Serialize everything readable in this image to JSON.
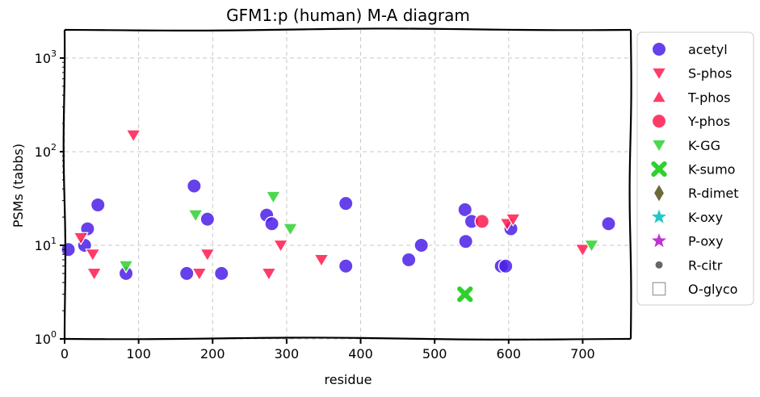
{
  "chart_data": {
    "type": "scatter",
    "title": "GFM1:p (human) M-A diagram",
    "xlabel": "residue",
    "ylabel": "PSMs (tabbs)",
    "xlim": [
      0,
      765
    ],
    "ylim": [
      1,
      2000
    ],
    "yscale": "log",
    "grid": true,
    "legend_position": "right-outside",
    "x_ticks": [
      "0",
      "100",
      "200",
      "300",
      "400",
      "500",
      "600",
      "700"
    ],
    "x_tick_values": [
      0,
      100,
      200,
      300,
      400,
      500,
      600,
      700
    ],
    "y_ticks": [
      {
        "value": 1,
        "base": "10",
        "exp": "0"
      },
      {
        "value": 10,
        "base": "10",
        "exp": "1"
      },
      {
        "value": 100,
        "base": "10",
        "exp": "2"
      },
      {
        "value": 1000,
        "base": "10",
        "exp": "3"
      }
    ],
    "series": [
      {
        "name": "acetyl",
        "marker": "circle",
        "color": "#4b1fe8",
        "points": [
          [
            5,
            9
          ],
          [
            27,
            10
          ],
          [
            31,
            15
          ],
          [
            45,
            27
          ],
          [
            83,
            5
          ],
          [
            165,
            5
          ],
          [
            175,
            43
          ],
          [
            193,
            19
          ],
          [
            212,
            5
          ],
          [
            273,
            21
          ],
          [
            280,
            17
          ],
          [
            380,
            28
          ],
          [
            380,
            6
          ],
          [
            465,
            7
          ],
          [
            482,
            10
          ],
          [
            541,
            24
          ],
          [
            542,
            11
          ],
          [
            550,
            18
          ],
          [
            590,
            6
          ],
          [
            596,
            6
          ],
          [
            603,
            15
          ],
          [
            735,
            17
          ]
        ]
      },
      {
        "name": "S-phos",
        "marker": "triangle-down",
        "color": "#ff1a4d",
        "points": [
          [
            22,
            12
          ],
          [
            38,
            8
          ],
          [
            40,
            5
          ],
          [
            93,
            150
          ],
          [
            182,
            5
          ],
          [
            193,
            8
          ],
          [
            276,
            5
          ],
          [
            292,
            10
          ],
          [
            347,
            7
          ],
          [
            598,
            17
          ],
          [
            606,
            19
          ],
          [
            700,
            9
          ]
        ]
      },
      {
        "name": "T-phos",
        "marker": "triangle-up",
        "color": "#ff1a4d",
        "points": []
      },
      {
        "name": "Y-phos",
        "marker": "circle",
        "color": "#ff1a4d",
        "points": [
          [
            564,
            18
          ]
        ]
      },
      {
        "name": "K-GG",
        "marker": "triangle-down",
        "color": "#2ed12e",
        "points": [
          [
            83,
            6
          ],
          [
            177,
            21
          ],
          [
            282,
            33
          ],
          [
            305,
            15
          ],
          [
            712,
            10
          ]
        ]
      },
      {
        "name": "K-sumo",
        "marker": "x",
        "color": "#2ed12e",
        "points": [
          [
            541,
            3
          ]
        ]
      },
      {
        "name": "R-dimet",
        "marker": "diamond",
        "color": "#6b6b3a",
        "points": []
      },
      {
        "name": "K-oxy",
        "marker": "star",
        "color": "#22c8c8",
        "points": []
      },
      {
        "name": "P-oxy",
        "marker": "star",
        "color": "#c031d6",
        "points": []
      },
      {
        "name": "R-citr",
        "marker": "dot",
        "color": "#666666",
        "points": []
      },
      {
        "name": "O-glyco",
        "marker": "square-open",
        "color": "#999999",
        "points": []
      }
    ]
  }
}
